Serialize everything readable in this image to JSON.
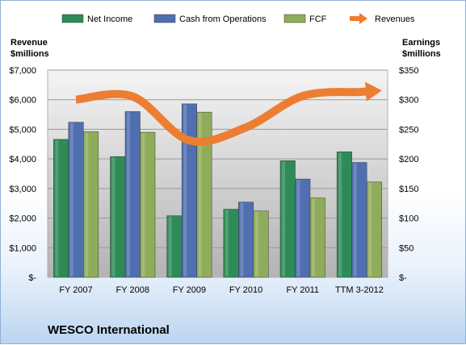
{
  "chart_data": {
    "type": "bar",
    "company": "WESCO International",
    "categories": [
      "FY 2007",
      "FY 2008",
      "FY 2009",
      "FY 2010",
      "FY 2011",
      "TTM 3-2012"
    ],
    "series": [
      {
        "name": "Net Income",
        "axis": "right",
        "color": "#2e8b57",
        "values": [
          233,
          204,
          104,
          115,
          197,
          212
        ]
      },
      {
        "name": "Cash from Operations",
        "axis": "right",
        "color": "#4f6fb0",
        "values": [
          262,
          280,
          293,
          127,
          166,
          194
        ]
      },
      {
        "name": "FCF",
        "axis": "right",
        "color": "#8fac5a",
        "values": [
          246,
          245,
          279,
          112,
          134,
          161
        ]
      },
      {
        "name": "Revenues",
        "axis": "left",
        "type": "line",
        "color": "#ed7d31",
        "values": [
          6003,
          6111,
          4624,
          5064,
          6126,
          6260
        ]
      }
    ],
    "y_left": {
      "title_line1": "Revenue",
      "title_line2": "$millions",
      "ylim": [
        0,
        7000
      ],
      "tick_labels": [
        "$-",
        "$1,000",
        "$2,000",
        "$3,000",
        "$4,000",
        "$5,000",
        "$6,000",
        "$7,000"
      ]
    },
    "y_right": {
      "title_line1": "Earnings",
      "title_line2": "$millions",
      "ylim": [
        0,
        350
      ],
      "tick_labels": [
        "$-",
        "$50",
        "$100",
        "$150",
        "$200",
        "$250",
        "$300",
        "$350"
      ]
    },
    "grid": true,
    "legend_position": "top"
  }
}
